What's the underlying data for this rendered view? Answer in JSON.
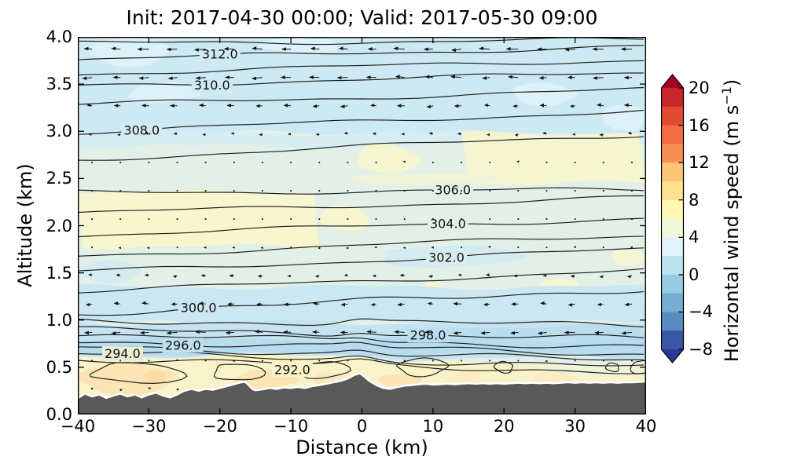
{
  "title": "Init: 2017-04-30 00:00; Valid: 2017-05-30 09:00",
  "axes": {
    "xlabel": "Distance (km)",
    "ylabel": "Altitude (km)",
    "x_tick_values": [
      -40,
      -30,
      -20,
      -10,
      0,
      10,
      20,
      30,
      40
    ],
    "x_tick_labels": [
      "−40",
      "−30",
      "−20",
      "−10",
      "0",
      "10",
      "20",
      "30",
      "40"
    ],
    "y_tick_values": [
      0,
      0.5,
      1,
      1.5,
      2,
      2.5,
      3,
      3.5,
      4
    ],
    "y_tick_labels": [
      "0.0",
      "0.5",
      "1.0",
      "1.5",
      "2.0",
      "2.5",
      "3.0",
      "3.5",
      "4.0"
    ]
  },
  "colorbar": {
    "label_prefix": "Horizontal wind speed (m s",
    "label_sup": "−1",
    "label_suffix": ")",
    "tick_values": [
      20,
      16,
      12,
      8,
      4,
      0,
      -4,
      -8
    ],
    "tick_labels": [
      "20",
      "16",
      "12",
      "8",
      "4",
      "0",
      "−4",
      "−8"
    ],
    "value_range": [
      -8,
      20
    ],
    "step": 2,
    "segment_colors_top_to_bottom": [
      "#c72629",
      "#e04a31",
      "#f46d43",
      "#f98e55",
      "#fdc674",
      "#fee090",
      "#fff8b5",
      "#f0f9db",
      "#e0f3f8",
      "#bce2ee",
      "#97cbe1",
      "#74add1",
      "#588cc0",
      "#3a55a4"
    ],
    "extend_over_color": "#a50026",
    "extend_under_color": "#313695"
  },
  "chart_data": {
    "type": "heatmap",
    "subtype": "vertical cross-section: filled contours of horizontal wind speed, overlaid contour lines (292–313, labeled every 2), wind vector arrows, gray terrain silhouette",
    "title": "Init: 2017-04-30 00:00; Valid: 2017-05-30 09:00",
    "xlabel": "Distance (km)",
    "ylabel": "Altitude (km)",
    "xlim": [
      -40,
      40
    ],
    "ylim": [
      0,
      4
    ],
    "fill_variable": "Horizontal wind speed (m s−1)",
    "fill_levels_step": 2,
    "fill_range": [
      -8,
      20
    ],
    "contour_line_levels": [
      292,
      293,
      294,
      295,
      296,
      297,
      298,
      299,
      300,
      301,
      302,
      303,
      304,
      305,
      306,
      307,
      308,
      309,
      310,
      311,
      312,
      313
    ],
    "base_fill": "#e3f0e8",
    "terrain_color": "#595959",
    "contours": [
      {
        "level": 313,
        "alt_left": 3.93,
        "alt_right": 3.97
      },
      {
        "level": 312,
        "alt_left": 3.76,
        "alt_right": 3.9
      },
      {
        "level": 311,
        "alt_left": 3.61,
        "alt_right": 3.76
      },
      {
        "level": 310,
        "alt_left": 3.48,
        "alt_right": 3.62
      },
      {
        "level": 309,
        "alt_left": 3.28,
        "alt_right": 3.44
      },
      {
        "level": 308,
        "alt_left": 2.99,
        "alt_right": 3.22
      },
      {
        "level": 307,
        "alt_left": 2.7,
        "alt_right": 2.97
      },
      {
        "level": 306,
        "alt_left": 2.35,
        "alt_right": 2.38
      },
      {
        "level": 305,
        "alt_left": 2.13,
        "alt_right": 2.3
      },
      {
        "level": 304,
        "alt_left": 1.9,
        "alt_right": 2.08
      },
      {
        "level": 303,
        "alt_left": 1.68,
        "alt_right": 1.9
      },
      {
        "level": 302,
        "alt_left": 1.51,
        "alt_right": 1.75
      },
      {
        "level": 301,
        "alt_left": 1.3,
        "alt_right": 1.53
      },
      {
        "level": 300,
        "alt_left": 1.07,
        "alt_right": 1.33
      },
      {
        "level": 299,
        "alt_left": 0.985,
        "alt_right": 0.955
      },
      {
        "level": 298,
        "alt_left": 0.9,
        "alt_right": 0.8
      },
      {
        "level": 297,
        "alt_left": 0.845,
        "alt_right": 0.715
      },
      {
        "level": 296,
        "alt_left": 0.78,
        "alt_right": 0.64
      },
      {
        "level": 295,
        "alt_left": 0.715,
        "alt_right": 0.57
      },
      {
        "level": 294,
        "alt_left": 0.65,
        "alt_right": 0.505
      },
      {
        "level": 293,
        "alt_left": 0.59,
        "alt_right": 0.45
      }
    ],
    "closed_contours_292": [
      {
        "cx": -31.5,
        "cy": 0.44,
        "rx": 6.5,
        "ry": 0.105
      },
      {
        "cx": -17.5,
        "cy": 0.45,
        "rx": 3.5,
        "ry": 0.1
      },
      {
        "cx": -5.5,
        "cy": 0.47,
        "rx": 3.5,
        "ry": 0.09
      },
      {
        "cx": 8.5,
        "cy": 0.5,
        "rx": 3.5,
        "ry": 0.085
      },
      {
        "cx": 20.0,
        "cy": 0.5,
        "rx": 1.3,
        "ry": 0.055
      },
      {
        "cx": 35.3,
        "cy": 0.5,
        "rx": 0.9,
        "ry": 0.05
      },
      {
        "cx": 39.3,
        "cy": 0.5,
        "rx": 1.4,
        "ry": 0.08
      }
    ],
    "contour_labels": [
      {
        "text": "312.0",
        "level": 312,
        "x_km": -20.0,
        "alt_km": 3.81,
        "bg": "#cfe9f3"
      },
      {
        "text": "310.0",
        "level": 310,
        "x_km": -21.1,
        "alt_km": 3.52,
        "bg": "#cfe9f3"
      },
      {
        "text": "308.0",
        "level": 308,
        "x_km": -31.0,
        "alt_km": 3.02,
        "bg": "#d4ebf2"
      },
      {
        "text": "306.0",
        "level": 306,
        "x_km": 12.8,
        "alt_km": 2.31,
        "bg": "#e3f0e8"
      },
      {
        "text": "304.0",
        "level": 304,
        "x_km": 12.1,
        "alt_km": 2.02,
        "bg": "#e3f0e8"
      },
      {
        "text": "302.0",
        "level": 302,
        "x_km": 11.9,
        "alt_km": 1.69,
        "bg": "#d9edee"
      },
      {
        "text": "300.0",
        "level": 300,
        "x_km": -23.0,
        "alt_km": 1.12,
        "bg": "#c9e6f1"
      },
      {
        "text": "298.0",
        "level": 298,
        "x_km": 9.3,
        "alt_km": 0.82,
        "bg": "#badeef"
      },
      {
        "text": "296.0",
        "level": 296,
        "x_km": -25.2,
        "alt_km": 0.76,
        "bg": "#bfe0ef"
      },
      {
        "text": "294.0",
        "level": 294,
        "x_km": -33.7,
        "alt_km": 0.62,
        "bg": "#e9f0d2"
      },
      {
        "text": "292.0",
        "level": 292,
        "x_km": -9.8,
        "alt_km": 0.475,
        "bg": "#f8f3c9"
      }
    ],
    "fill_regions": [
      {
        "x": [
          -40,
          40
        ],
        "alt": [
          2.98,
          4.0
        ],
        "color": "#cde9f3"
      },
      {
        "x": [
          -40,
          40
        ],
        "alt": [
          2.84,
          2.98
        ],
        "color": "#d7edf1"
      },
      {
        "x": [
          -38.5,
          -27
        ],
        "alt": [
          3.7,
          3.98
        ],
        "color": "#dcf1f8"
      },
      {
        "x": [
          -14,
          -3
        ],
        "alt": [
          3.82,
          4.0
        ],
        "color": "#dcf1f8"
      },
      {
        "x": [
          -33,
          -23
        ],
        "alt": [
          3.3,
          3.52
        ],
        "color": "#dcf1f8"
      },
      {
        "x": [
          21,
          30
        ],
        "alt": [
          3.28,
          3.5
        ],
        "color": "#dcf1f8"
      },
      {
        "x": [
          34,
          40
        ],
        "alt": [
          2.98,
          3.3
        ],
        "color": "#dcf1f8"
      },
      {
        "x": [
          14,
          40
        ],
        "alt": [
          2.45,
          2.98
        ],
        "color": "#f5f5d0"
      },
      {
        "x": [
          -1,
          8
        ],
        "alt": [
          2.56,
          2.86
        ],
        "color": "#f5f5d0"
      },
      {
        "x": [
          -2,
          19
        ],
        "alt": [
          2.42,
          2.56
        ],
        "color": "#f0f4d6"
      },
      {
        "x": [
          -40,
          -6
        ],
        "alt": [
          1.78,
          2.35
        ],
        "color": "#f7f6cf"
      },
      {
        "x": [
          -6,
          1
        ],
        "alt": [
          1.95,
          2.22
        ],
        "color": "#f7f6cf"
      },
      {
        "x": [
          2,
          22
        ],
        "alt": [
          1.55,
          1.8
        ],
        "color": "#d5ebf2"
      },
      {
        "x": [
          -40,
          -31
        ],
        "alt": [
          1.4,
          1.62
        ],
        "color": "#d5ebf2"
      },
      {
        "x": [
          25,
          31
        ],
        "alt": [
          1.27,
          1.45
        ],
        "color": "#f4f5d2"
      },
      {
        "x": [
          8.5,
          11.5
        ],
        "alt": [
          1.27,
          1.43
        ],
        "color": "#f4f5d2"
      },
      {
        "x": [
          35,
          40
        ],
        "alt": [
          1.58,
          1.75
        ],
        "color": "#f4f5d2"
      },
      {
        "x": [
          -40,
          40
        ],
        "alt": [
          0.97,
          1.35
        ],
        "color": "#cbe7f2"
      },
      {
        "x": [
          -40,
          40
        ],
        "alt": [
          0.6,
          0.97
        ],
        "color": "#c5e3f0"
      },
      {
        "x": [
          -40,
          40
        ],
        "alt": [
          0.64,
          0.8
        ],
        "color": "#b6dcee"
      },
      {
        "x": [
          6,
          40
        ],
        "alt": [
          0.8,
          0.93
        ],
        "color": "#bbdeef"
      },
      {
        "x": [
          -40,
          2
        ],
        "alt": [
          0.52,
          0.62
        ],
        "color": "#f8f3c9"
      },
      {
        "x": [
          -40,
          40
        ],
        "alt": [
          0.0,
          0.54
        ],
        "color": "#f8f3c9"
      },
      {
        "x": [
          25,
          40
        ],
        "alt": [
          0.4,
          0.54
        ],
        "color": "#eef3da"
      },
      {
        "x": [
          -40,
          -26
        ],
        "alt": [
          0.22,
          0.52
        ],
        "color": "#fbe5b4"
      },
      {
        "x": [
          -30.5,
          -27.5
        ],
        "alt": [
          0.32,
          0.47
        ],
        "color": "#f9dda1"
      },
      {
        "x": [
          -18,
          -9
        ],
        "alt": [
          0.28,
          0.48
        ],
        "color": "#fbe5b4"
      },
      {
        "x": [
          -7,
          -2
        ],
        "alt": [
          0.3,
          0.44
        ],
        "color": "#fce9bf"
      },
      {
        "x": [
          2.5,
          8.5
        ],
        "alt": [
          0.28,
          0.44
        ],
        "color": "#fbe5b4"
      },
      {
        "x": [
          12,
          17
        ],
        "alt": [
          0.32,
          0.44
        ],
        "color": "#fcebc3"
      },
      {
        "x": [
          24,
          30
        ],
        "alt": [
          0.33,
          0.45
        ],
        "color": "#fcebc3"
      }
    ],
    "terrain_profile": [
      [
        -40,
        0.16
      ],
      [
        -39,
        0.21
      ],
      [
        -38,
        0.18
      ],
      [
        -37,
        0.2
      ],
      [
        -36,
        0.165
      ],
      [
        -35,
        0.19
      ],
      [
        -34,
        0.21
      ],
      [
        -33,
        0.18
      ],
      [
        -32,
        0.2
      ],
      [
        -31,
        0.17
      ],
      [
        -30,
        0.2
      ],
      [
        -29,
        0.22
      ],
      [
        -28,
        0.19
      ],
      [
        -27,
        0.17
      ],
      [
        -26,
        0.2
      ],
      [
        -25,
        0.24
      ],
      [
        -24,
        0.26
      ],
      [
        -23,
        0.24
      ],
      [
        -22,
        0.26
      ],
      [
        -21,
        0.25
      ],
      [
        -20,
        0.27
      ],
      [
        -19,
        0.29
      ],
      [
        -18,
        0.31
      ],
      [
        -17,
        0.33
      ],
      [
        -16.5,
        0.335
      ],
      [
        -16,
        0.3
      ],
      [
        -15.5,
        0.26
      ],
      [
        -15,
        0.245
      ],
      [
        -14,
        0.255
      ],
      [
        -13,
        0.27
      ],
      [
        -12,
        0.26
      ],
      [
        -11,
        0.275
      ],
      [
        -10,
        0.27
      ],
      [
        -9,
        0.28
      ],
      [
        -8,
        0.27
      ],
      [
        -7,
        0.29
      ],
      [
        -6,
        0.3
      ],
      [
        -5,
        0.315
      ],
      [
        -4,
        0.33
      ],
      [
        -3,
        0.345
      ],
      [
        -2,
        0.37
      ],
      [
        -1,
        0.41
      ],
      [
        -0.3,
        0.425
      ],
      [
        0.3,
        0.39
      ],
      [
        1,
        0.345
      ],
      [
        2,
        0.3
      ],
      [
        3,
        0.27
      ],
      [
        4,
        0.26
      ],
      [
        5,
        0.28
      ],
      [
        6,
        0.295
      ],
      [
        7,
        0.3
      ],
      [
        8,
        0.31
      ],
      [
        9,
        0.315
      ],
      [
        10,
        0.305
      ],
      [
        11,
        0.31
      ],
      [
        12,
        0.315
      ],
      [
        13,
        0.31
      ],
      [
        14,
        0.315
      ],
      [
        15,
        0.32
      ],
      [
        16,
        0.315
      ],
      [
        17,
        0.32
      ],
      [
        18,
        0.315
      ],
      [
        19,
        0.32
      ],
      [
        20,
        0.315
      ],
      [
        21,
        0.32
      ],
      [
        22,
        0.325
      ],
      [
        23,
        0.32
      ],
      [
        24,
        0.325
      ],
      [
        25,
        0.32
      ],
      [
        26,
        0.325
      ],
      [
        27,
        0.32
      ],
      [
        28,
        0.325
      ],
      [
        29,
        0.33
      ],
      [
        30,
        0.325
      ],
      [
        31,
        0.33
      ],
      [
        32,
        0.325
      ],
      [
        33,
        0.33
      ],
      [
        34,
        0.325
      ],
      [
        35,
        0.33
      ],
      [
        36,
        0.325
      ],
      [
        37,
        0.33
      ],
      [
        38,
        0.33
      ],
      [
        39,
        0.335
      ],
      [
        40,
        0.34
      ]
    ],
    "wind_profile": [
      [
        0.0,
        0.3
      ],
      [
        0.1,
        0.5
      ],
      [
        0.2,
        0.9
      ],
      [
        0.3,
        1.3
      ],
      [
        0.4,
        1.6
      ],
      [
        0.5,
        0.8
      ],
      [
        0.6,
        -1.4
      ],
      [
        0.7,
        -3.2
      ],
      [
        0.8,
        -4.3
      ],
      [
        0.9,
        -4.6
      ],
      [
        1.0,
        -4.4
      ],
      [
        1.15,
        -3.6
      ],
      [
        1.3,
        -2.8
      ],
      [
        1.5,
        -2.0
      ],
      [
        1.7,
        -1.2
      ],
      [
        1.9,
        -0.2
      ],
      [
        2.0,
        0.3
      ],
      [
        2.2,
        0.4
      ],
      [
        2.4,
        0.2
      ],
      [
        2.6,
        -0.5
      ],
      [
        2.8,
        -1.1
      ],
      [
        3.0,
        -2.0
      ],
      [
        3.2,
        -3.0
      ],
      [
        3.4,
        -4.0
      ],
      [
        3.6,
        -4.6
      ],
      [
        3.8,
        -5.0
      ],
      [
        4.0,
        -5.2
      ]
    ],
    "wind_grid": {
      "x0_km": -38,
      "dx_km": 4,
      "cols": 20,
      "z0_km": 3.87,
      "dz_km": 0.3,
      "rows": 13
    }
  }
}
